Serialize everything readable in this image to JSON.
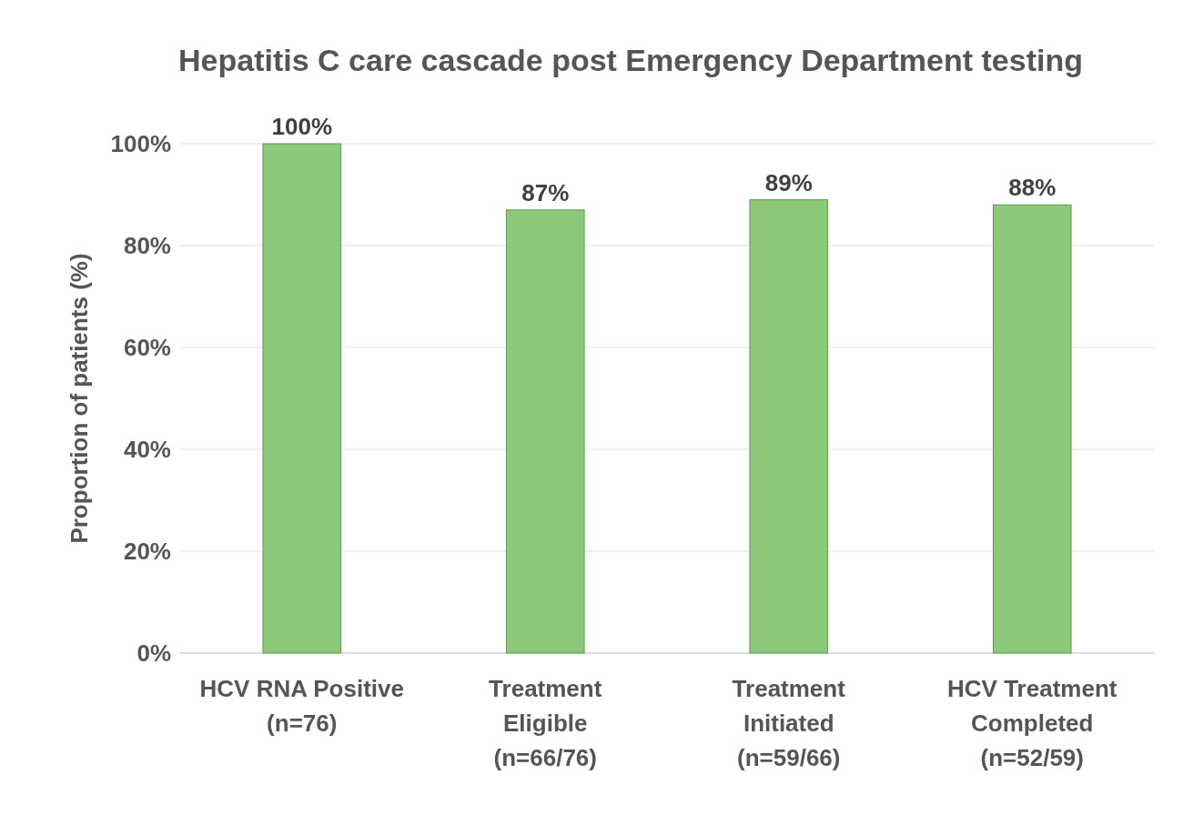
{
  "chart_data": {
    "type": "bar",
    "title": "Hepatitis C care cascade post Emergency Department testing",
    "ylabel": "Proportion of patients (%)",
    "categories": [
      "HCV RNA Positive\n(n=76)",
      "Treatment\nEligible\n(n=66/76)",
      "Treatment\nInitiated\n(n=59/66)",
      "HCV Treatment\nCompleted\n(n=52/59)"
    ],
    "values": [
      100,
      87,
      89,
      88
    ],
    "value_labels": [
      "100%",
      "87%",
      "89%",
      "88%"
    ],
    "color": "#8cc97a",
    "ylim": [
      0,
      100
    ],
    "yticks": [
      {
        "value": 0,
        "label": "0%"
      },
      {
        "value": 20,
        "label": "20%"
      },
      {
        "value": 40,
        "label": "40%"
      },
      {
        "value": 60,
        "label": "60%"
      },
      {
        "value": 80,
        "label": "80%"
      },
      {
        "value": 100,
        "label": "100%"
      }
    ],
    "grid": "y"
  }
}
